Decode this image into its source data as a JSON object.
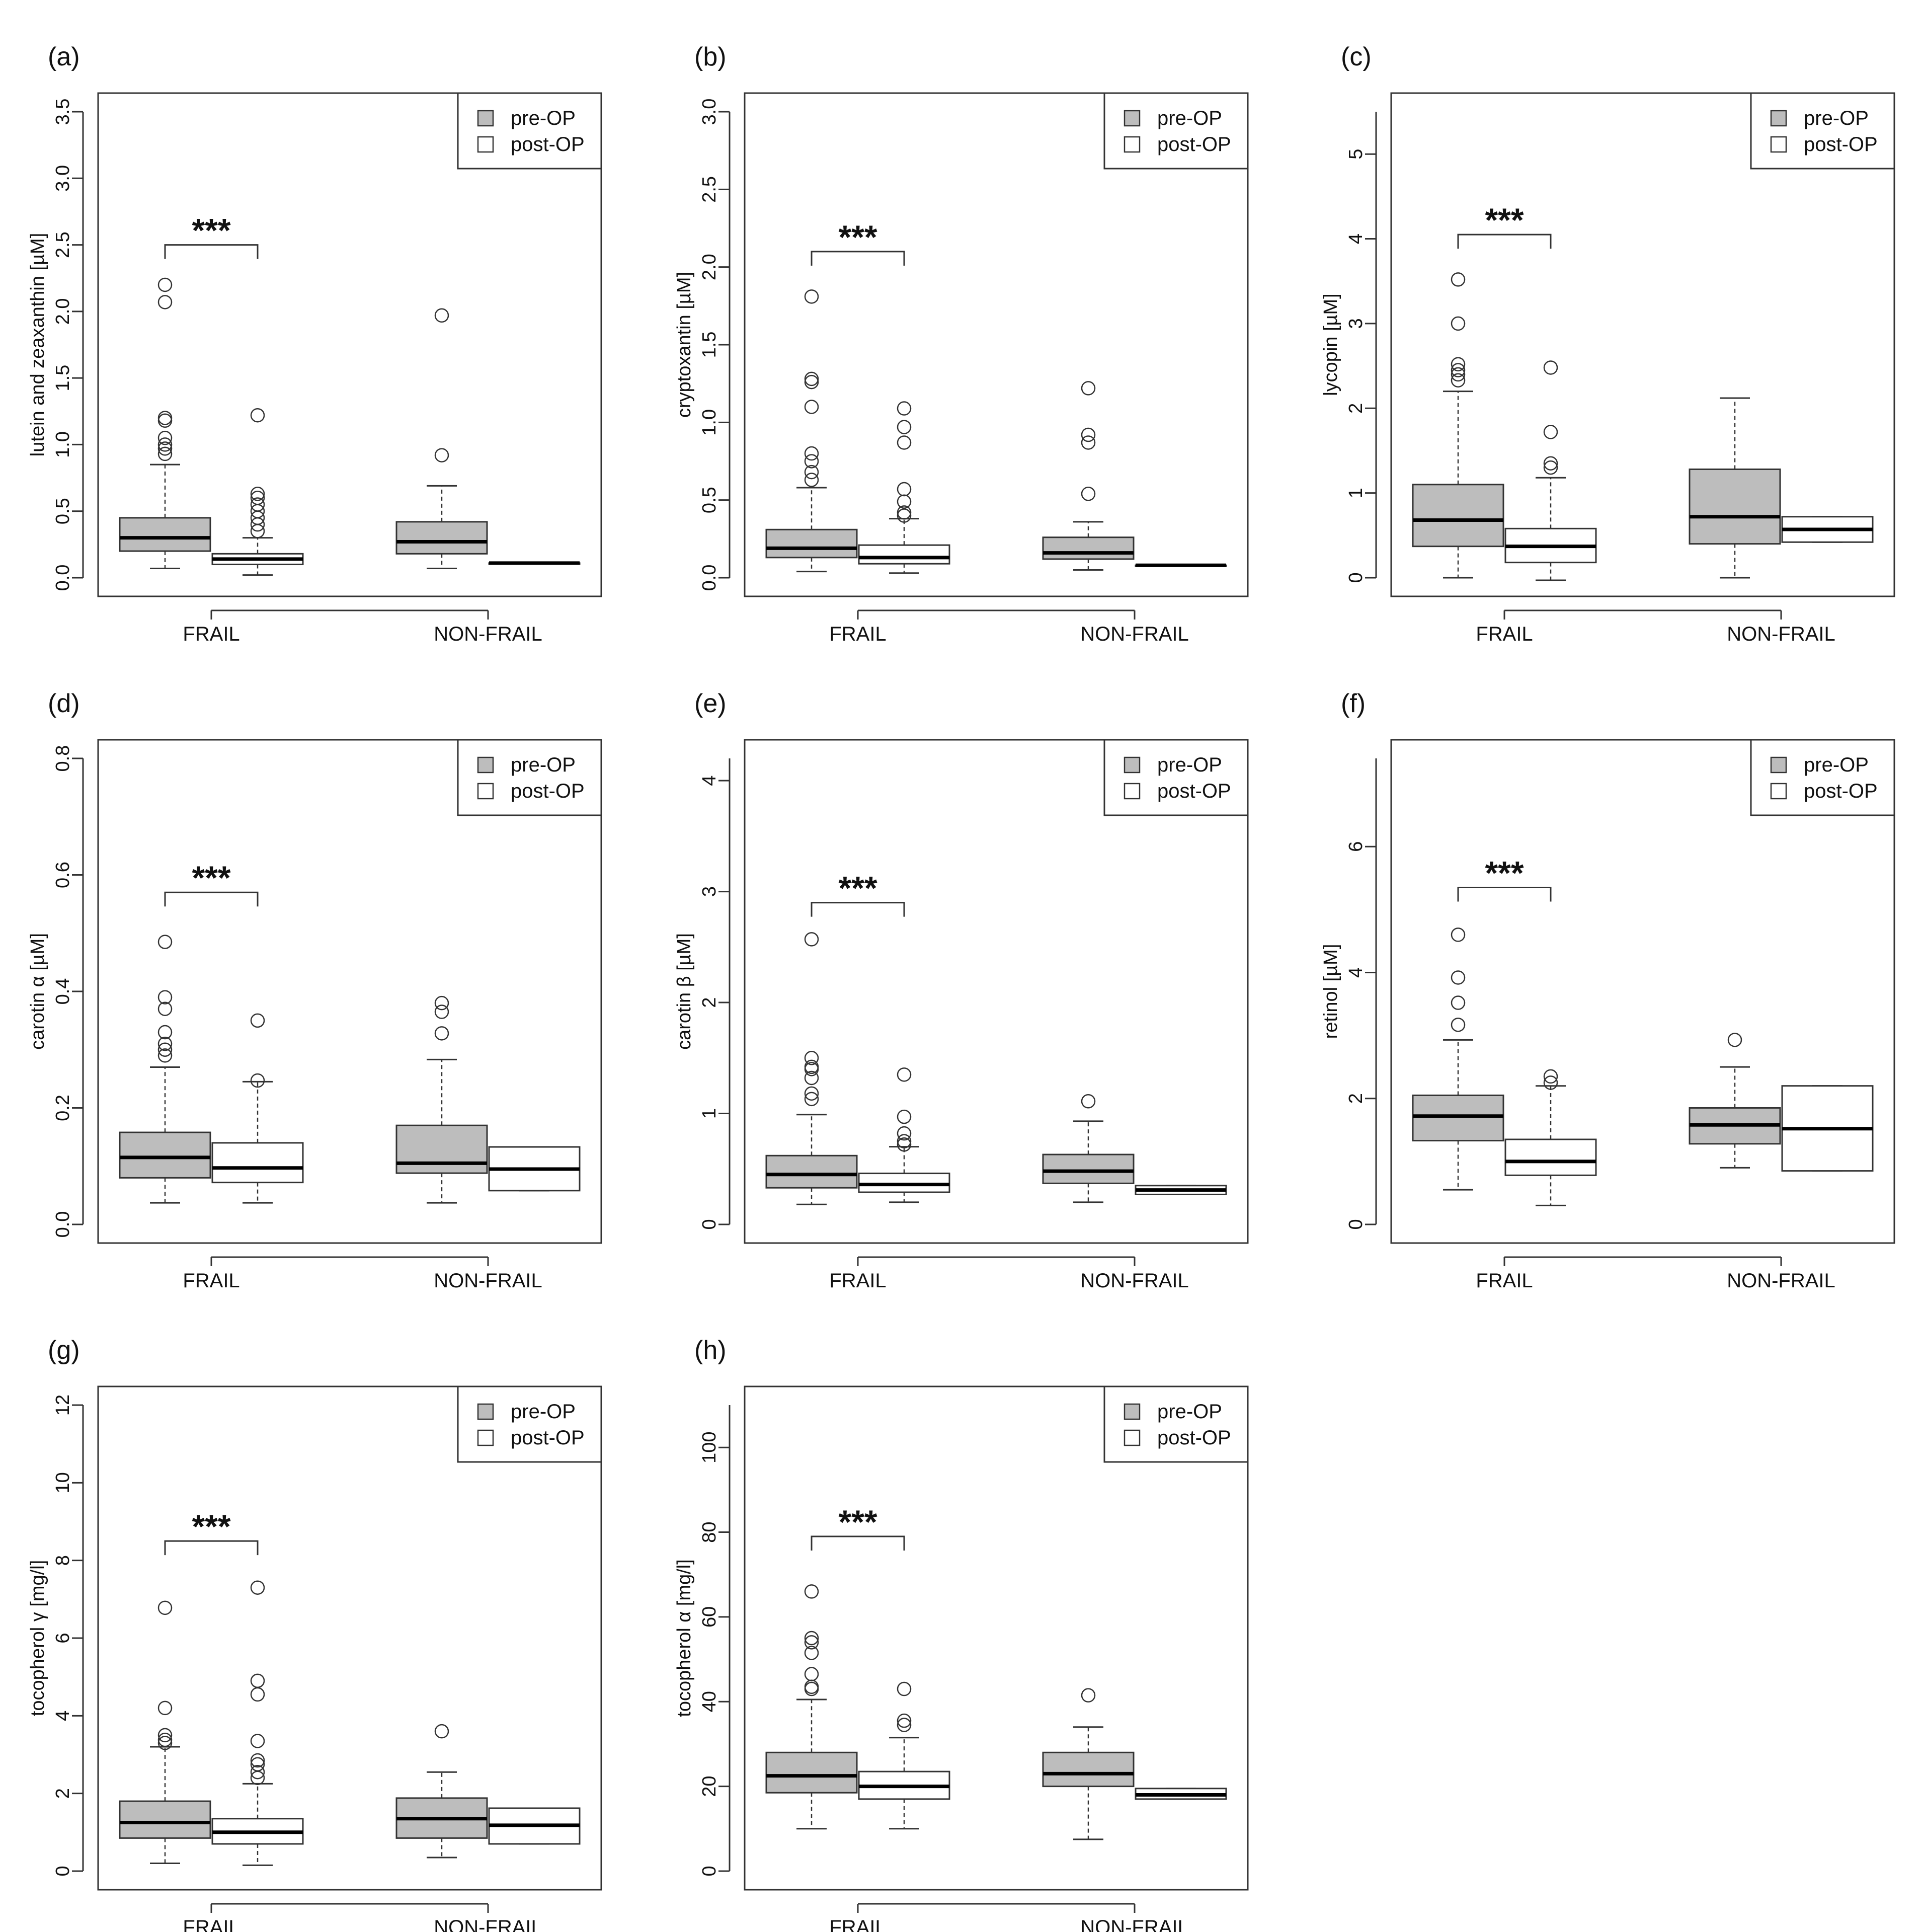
{
  "figure": {
    "legend": {
      "pre_label": "pre-OP",
      "post_label": "post-OP"
    },
    "colors": {
      "pre_fill": "#bdbdbd",
      "post_fill": "#ffffff",
      "stroke": "#333333",
      "median": "#000000"
    },
    "categories": [
      "FRAIL",
      "NON-FRAIL"
    ],
    "significance": "***"
  },
  "chart_data": [
    {
      "panel": "(a)",
      "type": "boxplot",
      "ylabel": "lutein and zeaxanthin [µM]",
      "ylim": [
        0,
        3.5
      ],
      "yticks": [
        "0.0",
        "0.5",
        "1.0",
        "1.5",
        "2.0",
        "2.5",
        "3.0",
        "3.5"
      ],
      "categories": [
        "FRAIL",
        "NON-FRAIL"
      ],
      "significance": {
        "label": "***",
        "category": "FRAIL",
        "at": 2.5
      },
      "series": [
        {
          "name": "pre-OP",
          "boxes": [
            {
              "min": 0.07,
              "q1": 0.2,
              "median": 0.3,
              "q3": 0.45,
              "max": 0.85,
              "outliers": [
                0.93,
                0.97,
                1.0,
                1.05,
                1.18,
                1.2,
                2.07,
                2.2
              ]
            },
            {
              "min": 0.07,
              "q1": 0.18,
              "median": 0.27,
              "q3": 0.42,
              "max": 0.69,
              "outliers": [
                0.92,
                1.97
              ]
            }
          ]
        },
        {
          "name": "post-OP",
          "boxes": [
            {
              "min": 0.02,
              "q1": 0.1,
              "median": 0.14,
              "q3": 0.18,
              "max": 0.3,
              "outliers": [
                0.35,
                0.4,
                0.45,
                0.5,
                0.55,
                0.6,
                0.63,
                1.22
              ]
            },
            {
              "min": 0.11,
              "q1": 0.11,
              "median": 0.11,
              "q3": 0.11,
              "max": 0.11,
              "outliers": []
            }
          ]
        }
      ]
    },
    {
      "panel": "(b)",
      "type": "boxplot",
      "ylabel": "cryptoxantin [µM]",
      "ylim": [
        0,
        3.0
      ],
      "yticks": [
        "0.0",
        "0.5",
        "1.0",
        "1.5",
        "2.0",
        "2.5",
        "3.0"
      ],
      "categories": [
        "FRAIL",
        "NON-FRAIL"
      ],
      "significance": {
        "label": "***",
        "category": "FRAIL",
        "at": 2.1
      },
      "series": [
        {
          "name": "pre-OP",
          "boxes": [
            {
              "min": 0.04,
              "q1": 0.13,
              "median": 0.19,
              "q3": 0.31,
              "max": 0.58,
              "outliers": [
                0.63,
                0.68,
                0.75,
                0.8,
                1.1,
                1.26,
                1.28,
                1.81
              ]
            },
            {
              "min": 0.05,
              "q1": 0.12,
              "median": 0.16,
              "q3": 0.26,
              "max": 0.36,
              "outliers": [
                0.54,
                0.87,
                0.92,
                1.22
              ]
            }
          ]
        },
        {
          "name": "post-OP",
          "boxes": [
            {
              "min": 0.03,
              "q1": 0.09,
              "median": 0.13,
              "q3": 0.21,
              "max": 0.38,
              "outliers": [
                0.4,
                0.42,
                0.49,
                0.57,
                0.87,
                0.97,
                1.09
              ]
            },
            {
              "min": 0.08,
              "q1": 0.08,
              "median": 0.08,
              "q3": 0.08,
              "max": 0.08,
              "outliers": []
            }
          ]
        }
      ]
    },
    {
      "panel": "(c)",
      "type": "boxplot",
      "ylabel": "lycopin [µM]",
      "ylim": [
        0,
        5.5
      ],
      "yticks": [
        "0",
        "1",
        "2",
        "3",
        "4",
        "5"
      ],
      "categories": [
        "FRAIL",
        "NON-FRAIL"
      ],
      "significance": {
        "label": "***",
        "category": "FRAIL",
        "at": 4.05
      },
      "series": [
        {
          "name": "pre-OP",
          "boxes": [
            {
              "min": 0.0,
              "q1": 0.37,
              "median": 0.68,
              "q3": 1.1,
              "max": 2.2,
              "outliers": [
                2.33,
                2.4,
                2.45,
                2.52,
                3.0,
                3.52
              ]
            },
            {
              "min": 0.0,
              "q1": 0.4,
              "median": 0.72,
              "q3": 1.28,
              "max": 2.12,
              "outliers": []
            }
          ]
        },
        {
          "name": "post-OP",
          "boxes": [
            {
              "min": -0.03,
              "q1": 0.18,
              "median": 0.37,
              "q3": 0.58,
              "max": 1.18,
              "outliers": [
                1.3,
                1.35,
                1.72,
                2.48
              ]
            },
            {
              "min": 0.42,
              "q1": 0.42,
              "median": 0.57,
              "q3": 0.72,
              "max": 0.72,
              "outliers": []
            }
          ]
        }
      ]
    },
    {
      "panel": "(d)",
      "type": "boxplot",
      "ylabel": "carotin α [µM]",
      "ylim": [
        0,
        0.8
      ],
      "yticks": [
        "0.0",
        "0.2",
        "0.4",
        "0.6",
        "0.8"
      ],
      "categories": [
        "FRAIL",
        "NON-FRAIL"
      ],
      "significance": {
        "label": "***",
        "category": "FRAIL",
        "at": 0.57
      },
      "series": [
        {
          "name": "pre-OP",
          "boxes": [
            {
              "min": 0.037,
              "q1": 0.08,
              "median": 0.115,
              "q3": 0.158,
              "max": 0.27,
              "outliers": [
                0.29,
                0.3,
                0.31,
                0.33,
                0.37,
                0.39,
                0.485
              ]
            },
            {
              "min": 0.037,
              "q1": 0.088,
              "median": 0.105,
              "q3": 0.17,
              "max": 0.283,
              "outliers": [
                0.328,
                0.365,
                0.38
              ]
            }
          ]
        },
        {
          "name": "post-OP",
          "boxes": [
            {
              "min": 0.037,
              "q1": 0.072,
              "median": 0.097,
              "q3": 0.14,
              "max": 0.245,
              "outliers": [
                0.247,
                0.35
              ]
            },
            {
              "min": 0.058,
              "q1": 0.058,
              "median": 0.095,
              "q3": 0.133,
              "max": 0.133,
              "outliers": []
            }
          ]
        }
      ]
    },
    {
      "panel": "(e)",
      "type": "boxplot",
      "ylabel": "carotin β [µM]",
      "ylim": [
        0,
        4.2
      ],
      "yticks": [
        "0",
        "1",
        "2",
        "3",
        "4"
      ],
      "categories": [
        "FRAIL",
        "NON-FRAIL"
      ],
      "significance": {
        "label": "***",
        "category": "FRAIL",
        "at": 2.9
      },
      "series": [
        {
          "name": "pre-OP",
          "boxes": [
            {
              "min": 0.18,
              "q1": 0.33,
              "median": 0.45,
              "q3": 0.62,
              "max": 0.99,
              "outliers": [
                1.13,
                1.18,
                1.32,
                1.4,
                1.42,
                1.5,
                2.57
              ]
            },
            {
              "min": 0.2,
              "q1": 0.37,
              "median": 0.48,
              "q3": 0.63,
              "max": 0.93,
              "outliers": [
                1.11
              ]
            }
          ]
        },
        {
          "name": "post-OP",
          "boxes": [
            {
              "min": 0.2,
              "q1": 0.29,
              "median": 0.36,
              "q3": 0.46,
              "max": 0.7,
              "outliers": [
                0.72,
                0.75,
                0.82,
                0.97,
                1.35
              ]
            },
            {
              "min": 0.27,
              "q1": 0.27,
              "median": 0.31,
              "q3": 0.35,
              "max": 0.35,
              "outliers": []
            }
          ]
        }
      ]
    },
    {
      "panel": "(f)",
      "type": "boxplot",
      "ylabel": "retinol [µM]",
      "ylim": [
        0,
        7.4
      ],
      "yticks": [
        "0",
        "2",
        "4",
        "6"
      ],
      "categories": [
        "FRAIL",
        "NON-FRAIL"
      ],
      "significance": {
        "label": "***",
        "category": "FRAIL",
        "at": 5.35
      },
      "series": [
        {
          "name": "pre-OP",
          "boxes": [
            {
              "min": 0.55,
              "q1": 1.33,
              "median": 1.72,
              "q3": 2.05,
              "max": 2.93,
              "outliers": [
                3.17,
                3.52,
                3.92,
                4.6
              ]
            },
            {
              "min": 0.9,
              "q1": 1.28,
              "median": 1.58,
              "q3": 1.85,
              "max": 2.5,
              "outliers": [
                2.93
              ]
            }
          ]
        },
        {
          "name": "post-OP",
          "boxes": [
            {
              "min": 0.3,
              "q1": 0.78,
              "median": 1.0,
              "q3": 1.35,
              "max": 2.2,
              "outliers": [
                2.25,
                2.35
              ]
            },
            {
              "min": 0.85,
              "q1": 0.85,
              "median": 1.52,
              "q3": 2.2,
              "max": 2.2,
              "outliers": []
            }
          ]
        }
      ]
    },
    {
      "panel": "(g)",
      "type": "boxplot",
      "ylabel": "tocopherol γ [mg/l]",
      "ylim": [
        0,
        12
      ],
      "yticks": [
        "0",
        "2",
        "4",
        "6",
        "8",
        "10",
        "12"
      ],
      "categories": [
        "FRAIL",
        "NON-FRAIL"
      ],
      "significance": {
        "label": "***",
        "category": "FRAIL",
        "at": 8.5
      },
      "series": [
        {
          "name": "pre-OP",
          "boxes": [
            {
              "min": 0.2,
              "q1": 0.85,
              "median": 1.25,
              "q3": 1.8,
              "max": 3.2,
              "outliers": [
                3.3,
                3.38,
                3.5,
                4.2,
                6.78
              ]
            },
            {
              "min": 0.35,
              "q1": 0.85,
              "median": 1.35,
              "q3": 1.88,
              "max": 2.55,
              "outliers": [
                3.6
              ]
            }
          ]
        },
        {
          "name": "post-OP",
          "boxes": [
            {
              "min": 0.15,
              "q1": 0.7,
              "median": 1.0,
              "q3": 1.35,
              "max": 2.25,
              "outliers": [
                2.4,
                2.55,
                2.75,
                2.85,
                3.35,
                4.55,
                4.9,
                7.3
              ]
            },
            {
              "min": 0.7,
              "q1": 0.7,
              "median": 1.18,
              "q3": 1.62,
              "max": 1.62,
              "outliers": []
            }
          ]
        }
      ]
    },
    {
      "panel": "(h)",
      "type": "boxplot",
      "ylabel": "tocopherol α [mg/l]",
      "ylim": [
        0,
        110
      ],
      "yticks": [
        "0",
        "20",
        "40",
        "60",
        "80",
        "100"
      ],
      "categories": [
        "FRAIL",
        "NON-FRAIL"
      ],
      "significance": {
        "label": "***",
        "category": "FRAIL",
        "at": 79
      },
      "series": [
        {
          "name": "pre-OP",
          "boxes": [
            {
              "min": 10,
              "q1": 18.5,
              "median": 22.5,
              "q3": 28,
              "max": 40.5,
              "outliers": [
                43,
                43.5,
                46.5,
                51.5,
                54,
                55,
                66
              ]
            },
            {
              "min": 7.5,
              "q1": 20,
              "median": 23,
              "q3": 28,
              "max": 34,
              "outliers": [
                41.5
              ]
            }
          ]
        },
        {
          "name": "post-OP",
          "boxes": [
            {
              "min": 10,
              "q1": 17,
              "median": 20,
              "q3": 23.5,
              "max": 31.5,
              "outliers": [
                34.5,
                35.5,
                43
              ]
            },
            {
              "min": 17,
              "q1": 17,
              "median": 18,
              "q3": 19.5,
              "max": 19.5,
              "outliers": []
            }
          ]
        }
      ]
    }
  ]
}
